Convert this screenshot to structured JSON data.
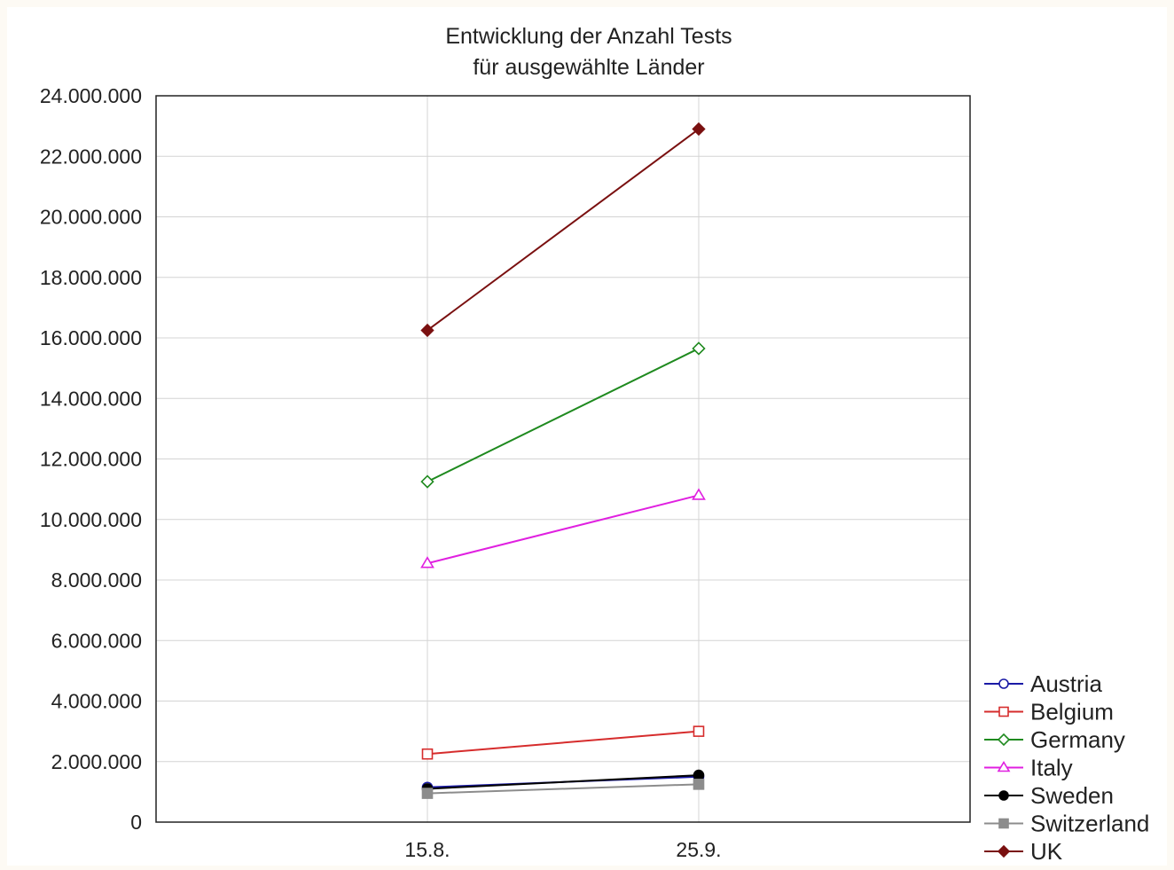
{
  "chart_data": {
    "type": "line",
    "title": "Entwicklung der Anzahl Tests",
    "subtitle": "für ausgewählte Länder",
    "xlabel": "",
    "ylabel": "",
    "categories": [
      "15.8.",
      "25.9."
    ],
    "ylim": [
      0,
      24000000
    ],
    "yticks": [
      0,
      2000000,
      4000000,
      6000000,
      8000000,
      10000000,
      12000000,
      14000000,
      16000000,
      18000000,
      20000000,
      22000000,
      24000000
    ],
    "ytick_labels": [
      "0",
      "2.000.000",
      "4.000.000",
      "6.000.000",
      "8.000.000",
      "10.000.000",
      "12.000.000",
      "14.000.000",
      "16.000.000",
      "18.000.000",
      "20.000.000",
      "22.000.000",
      "24.000.000"
    ],
    "grid": true,
    "legend_position": "bottom-right",
    "series": [
      {
        "name": "Austria",
        "values": [
          1150000,
          1500000
        ],
        "color": "#1a1aa6",
        "marker": "circle-open"
      },
      {
        "name": "Belgium",
        "values": [
          2250000,
          3000000
        ],
        "color": "#d62c2c",
        "marker": "square-open"
      },
      {
        "name": "Germany",
        "values": [
          11250000,
          15650000
        ],
        "color": "#1f8a1f",
        "marker": "diamond-open"
      },
      {
        "name": "Italy",
        "values": [
          8550000,
          10800000
        ],
        "color": "#e020e0",
        "marker": "triangle-open"
      },
      {
        "name": "Sweden",
        "values": [
          1100000,
          1550000
        ],
        "color": "#000000",
        "marker": "circle-filled"
      },
      {
        "name": "Switzerland",
        "values": [
          950000,
          1250000
        ],
        "color": "#8c8c8c",
        "marker": "square-filled"
      },
      {
        "name": "UK",
        "values": [
          16250000,
          22900000
        ],
        "color": "#7a1010",
        "marker": "diamond-filled"
      }
    ]
  }
}
